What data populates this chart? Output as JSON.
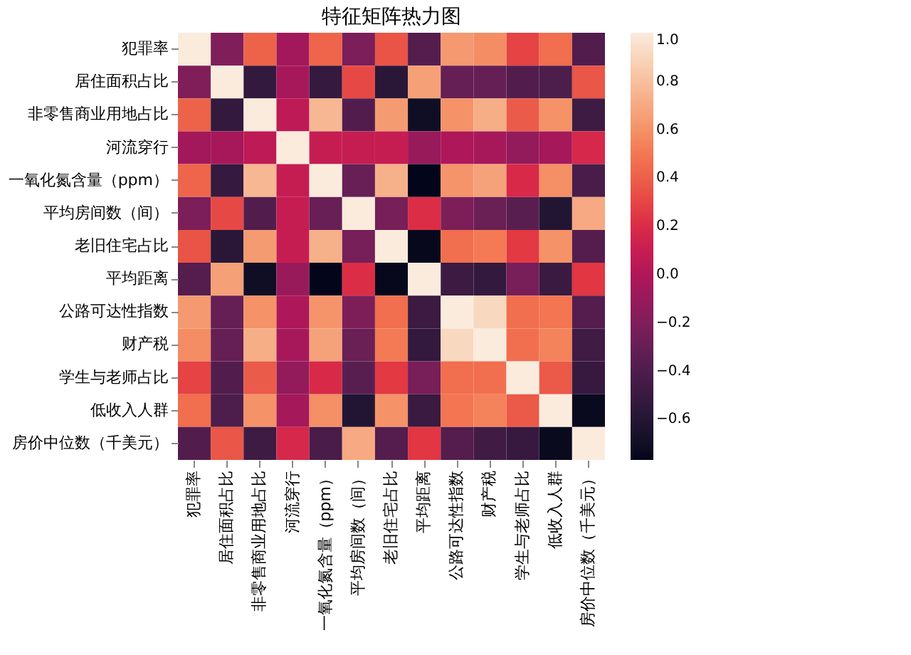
{
  "chart_data": {
    "type": "heatmap",
    "title": "特征矩阵热力图",
    "categories": [
      "犯罪率",
      "居住面积占比",
      "非零售商业用地占比",
      "河流穿行",
      "一氧化氮含量（ppm）",
      "平均房间数（间）",
      "老旧住宅占比",
      "平均距离",
      "公路可达性指数",
      "财产税",
      "学生与老师占比",
      "低收入人群",
      "房价中位数（千美元）"
    ],
    "y_categories": [
      "犯罪率",
      "居住面积占比",
      "非零售商业用地占比",
      "河流穿行",
      "一氧化氮含量（ppm）",
      "平均房间数（间）",
      "老旧住宅占比",
      "平均距离",
      "公路可达性指数",
      "财产税",
      "学生与老师占比",
      "低收入人群",
      "房价中位数（千美元）"
    ],
    "cells": [
      [
        1.0,
        -0.2,
        0.41,
        -0.06,
        0.42,
        -0.22,
        0.35,
        -0.38,
        0.63,
        0.58,
        0.29,
        0.46,
        -0.39
      ],
      [
        -0.2,
        1.0,
        -0.53,
        -0.04,
        -0.52,
        0.31,
        -0.57,
        0.66,
        -0.31,
        -0.31,
        -0.39,
        -0.41,
        0.36
      ],
      [
        0.41,
        -0.53,
        1.0,
        0.06,
        0.76,
        -0.39,
        0.64,
        -0.71,
        0.6,
        0.72,
        0.38,
        0.6,
        -0.48
      ],
      [
        -0.06,
        -0.04,
        0.06,
        1.0,
        0.09,
        0.09,
        0.09,
        -0.1,
        -0.01,
        -0.04,
        -0.12,
        -0.05,
        0.18
      ],
      [
        0.42,
        -0.52,
        0.76,
        0.09,
        1.0,
        -0.3,
        0.73,
        -0.77,
        0.61,
        0.67,
        0.19,
        0.59,
        -0.43
      ],
      [
        -0.22,
        0.31,
        -0.39,
        0.09,
        -0.3,
        1.0,
        -0.24,
        0.21,
        -0.21,
        -0.29,
        -0.36,
        -0.61,
        0.7
      ],
      [
        0.35,
        -0.57,
        0.64,
        0.09,
        0.73,
        -0.24,
        1.0,
        -0.75,
        0.46,
        0.51,
        0.26,
        0.6,
        -0.38
      ],
      [
        -0.38,
        0.66,
        -0.71,
        -0.1,
        -0.77,
        0.21,
        -0.75,
        1.0,
        -0.49,
        -0.53,
        -0.23,
        -0.5,
        0.25
      ],
      [
        0.63,
        -0.31,
        0.6,
        -0.01,
        0.61,
        -0.21,
        0.46,
        -0.49,
        1.0,
        0.91,
        0.46,
        0.49,
        -0.38
      ],
      [
        0.58,
        -0.31,
        0.72,
        -0.04,
        0.67,
        -0.29,
        0.51,
        -0.53,
        0.91,
        1.0,
        0.46,
        0.54,
        -0.47
      ],
      [
        0.29,
        -0.39,
        0.38,
        -0.12,
        0.19,
        -0.36,
        0.26,
        -0.23,
        0.46,
        0.46,
        1.0,
        0.37,
        -0.51
      ],
      [
        0.46,
        -0.41,
        0.6,
        -0.05,
        0.59,
        -0.61,
        0.6,
        -0.5,
        0.49,
        0.54,
        0.37,
        1.0,
        -0.74
      ],
      [
        -0.39,
        0.36,
        -0.48,
        0.18,
        -0.43,
        0.7,
        -0.38,
        0.25,
        -0.38,
        -0.47,
        -0.51,
        -0.74,
        1.0
      ]
    ],
    "clim": [
      -0.77,
      1.0
    ],
    "cticks": [
      {
        "value": -0.6,
        "label": "−0.6"
      },
      {
        "value": -0.4,
        "label": "−0.4"
      },
      {
        "value": -0.2,
        "label": "−0.2"
      },
      {
        "value": 0,
        "label": "0.0"
      },
      {
        "value": 0.2,
        "label": "0.2"
      },
      {
        "value": 0.4,
        "label": "0.4"
      },
      {
        "value": 0.6,
        "label": "0.6"
      },
      {
        "value": 0.8,
        "label": "0.8"
      },
      {
        "value": 1,
        "label": "1.0"
      }
    ]
  }
}
